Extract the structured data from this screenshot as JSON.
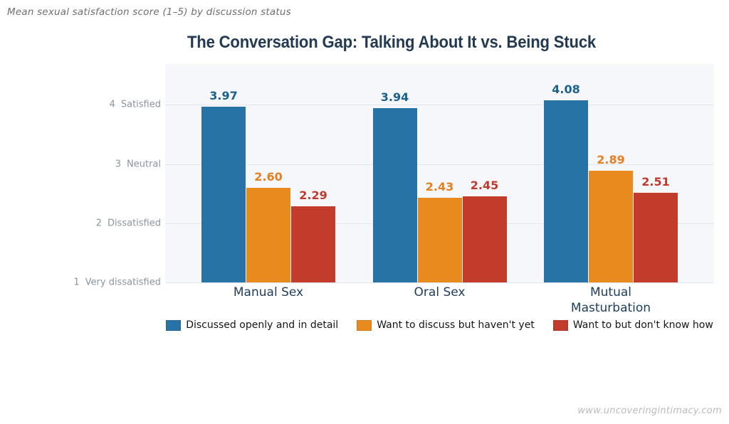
{
  "subtitle": "Mean sexual satisfaction score (1–5) by discussion status",
  "title": "The Conversation Gap: Talking About It vs. Being Stuck",
  "watermark": "www.uncoveringintimacy.com",
  "colors": {
    "background": "#ffffff",
    "plot_background": "#f5f7fa",
    "gridline": "#e1e7ee",
    "title_text": "#233a52",
    "category_text": "#1e3d5c",
    "ytick_text": "#8b949e",
    "subtitle_text": "#6f6f6f",
    "watermark_text": "#b9bcbe"
  },
  "chart_data": {
    "type": "bar",
    "title": "The Conversation Gap: Talking About It vs. Being Stuck",
    "subtitle": "Mean sexual satisfaction score (1–5) by discussion status",
    "categories": [
      "Manual Sex",
      "Oral Sex",
      "Mutual Masturbation"
    ],
    "series": [
      {
        "name": "Discussed openly and in detail",
        "color": "#2873a5",
        "label_color": "#1b608e",
        "values": [
          3.97,
          3.94,
          4.08
        ]
      },
      {
        "name": "Want to discuss but haven't yet",
        "color": "#e88a1e",
        "label_color": "#e67e22",
        "values": [
          2.6,
          2.43,
          2.89
        ]
      },
      {
        "name": "Want to but don't know how",
        "color": "#c33b2b",
        "label_color": "#c0392b",
        "values": [
          2.29,
          2.45,
          2.51
        ]
      }
    ],
    "yticks": [
      {
        "value": 4,
        "label": "Satisfied"
      },
      {
        "value": 3,
        "label": "Neutral"
      },
      {
        "value": 2,
        "label": "Dissatisfied"
      },
      {
        "value": 1,
        "label": "Very dissatisfied"
      }
    ],
    "ylim": [
      1,
      4.69
    ],
    "grid": true,
    "legend_position": "bottom",
    "value_label_decimals": 2
  }
}
